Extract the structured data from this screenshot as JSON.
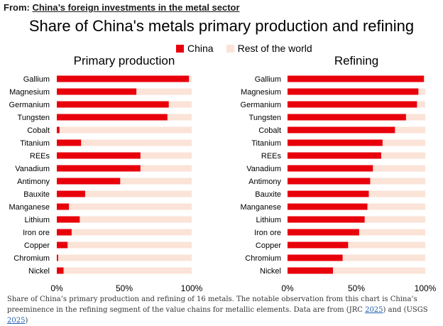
{
  "header": {
    "from_label": "From:",
    "from_link": "China’s foreign investments in the metal sector"
  },
  "chart_data": {
    "type": "bar",
    "title": "Share of China's metals primary production and refining",
    "legend": [
      {
        "name": "China",
        "color": "#e8000b"
      },
      {
        "name": "Rest of the world",
        "color": "#fbe3d8"
      }
    ],
    "xlim": [
      0,
      100
    ],
    "x_ticks": [
      "0%",
      "50%",
      "100%"
    ],
    "panels": [
      {
        "title": "Primary production",
        "categories": [
          "Gallium",
          "Magnesium",
          "Germanium",
          "Tungsten",
          "Cobalt",
          "Titanium",
          "REEs",
          "Vanadium",
          "Antimony",
          "Bauxite",
          "Manganese",
          "Lithium",
          "Iron ore",
          "Copper",
          "Chromium",
          "Nickel"
        ],
        "values": [
          98,
          59,
          83,
          82,
          2,
          18,
          62,
          62,
          47,
          21,
          9,
          17,
          11,
          8,
          1,
          5
        ]
      },
      {
        "title": "Refining",
        "categories": [
          "Gallium",
          "Magnesium",
          "Germanium",
          "Tungsten",
          "Cobalt",
          "Titanium",
          "REEs",
          "Vanadium",
          "Antimony",
          "Bauxite",
          "Manganese",
          "Lithium",
          "Iron ore",
          "Copper",
          "Chromium",
          "Nickel"
        ],
        "values": [
          99,
          95,
          94,
          86,
          78,
          69,
          68,
          62,
          60,
          59,
          58,
          56,
          52,
          44,
          40,
          33
        ]
      }
    ]
  },
  "caption": {
    "text1": "Share of China’s primary production and refining of 16 metals. The notable observation from this chart is China’s preeminence in the refining segment of the value chains for metallic elements. Data are from (JRC ",
    "link1": "2025",
    "text2": ") and (USGS ",
    "link2": "2025",
    "text3": ")"
  }
}
